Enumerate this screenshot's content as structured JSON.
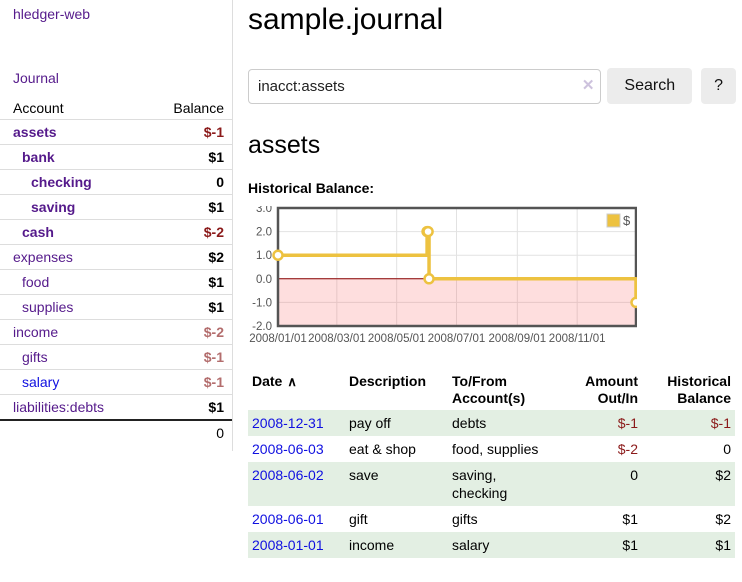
{
  "app": {
    "brand": "hledger-web"
  },
  "sidebar": {
    "nav_journal": "Journal",
    "table": {
      "headers": [
        "Account",
        "Balance"
      ],
      "rows": [
        {
          "account": "assets",
          "indent": 1,
          "bold": true,
          "balance": "$-1",
          "balance_style": "negative"
        },
        {
          "account": "bank",
          "indent": 2,
          "bold": true,
          "balance": "$1",
          "balance_style": "normal"
        },
        {
          "account": "checking",
          "indent": 3,
          "bold": true,
          "balance": "0",
          "balance_style": "normal"
        },
        {
          "account": "saving",
          "indent": 3,
          "bold": true,
          "balance": "$1",
          "balance_style": "normal"
        },
        {
          "account": "cash",
          "indent": 2,
          "bold": true,
          "balance": "$-2",
          "balance_style": "negative"
        },
        {
          "account": "expenses",
          "indent": 1,
          "bold": false,
          "balance": "$2",
          "balance_style": "normal"
        },
        {
          "account": "food",
          "indent": 2,
          "bold": false,
          "balance": "$1",
          "balance_style": "normal"
        },
        {
          "account": "supplies",
          "indent": 2,
          "bold": false,
          "balance": "$1",
          "balance_style": "normal"
        },
        {
          "account": "income",
          "indent": 1,
          "bold": false,
          "balance": "$-2",
          "balance_style": "negative-muted"
        },
        {
          "account": "gifts",
          "indent": 2,
          "bold": false,
          "balance": "$-1",
          "balance_style": "negative-muted"
        },
        {
          "account": "salary",
          "indent": 2,
          "bold": false,
          "balance": "$-1",
          "balance_style": "negative-muted",
          "link_style": "unvisited"
        },
        {
          "account": "liabilities:debts",
          "indent": 1,
          "bold": false,
          "balance": "$1",
          "balance_style": "normal"
        }
      ],
      "total": "0"
    }
  },
  "header": {
    "title": "sample.journal"
  },
  "search": {
    "value": "inacct:assets",
    "button": "Search",
    "help_button": "?"
  },
  "icons": {
    "sort_asc": "∧",
    "clear": "✕",
    "legend_swatch": "dollar-series"
  },
  "account_page": {
    "title": "assets",
    "chart_label": "Historical Balance:"
  },
  "chart_data": {
    "type": "line",
    "title": "Historical Balance:",
    "x_start": "2008-01-01",
    "x_end": "2008-12-31",
    "x_ticks": [
      {
        "date": "2008-01-01",
        "label": "2008/01/01"
      },
      {
        "date": "2008-03-01",
        "label": "2008/03/01"
      },
      {
        "date": "2008-05-01",
        "label": "2008/05/01"
      },
      {
        "date": "2008-07-01",
        "label": "2008/07/01"
      },
      {
        "date": "2008-09-01",
        "label": "2008/09/01"
      },
      {
        "date": "2008-11-01",
        "label": "2008/11/01"
      }
    ],
    "y_ticks": [
      {
        "value": 3,
        "label": "3.0"
      },
      {
        "value": 2,
        "label": "2.0"
      },
      {
        "value": 1,
        "label": "1.0"
      },
      {
        "value": 0,
        "label": "0.0"
      },
      {
        "value": -1,
        "label": "-1.0"
      },
      {
        "value": -2,
        "label": "-2.0"
      }
    ],
    "ylim": [
      -2,
      3
    ],
    "grid": true,
    "legend": {
      "position": "top-right",
      "entries": [
        "$"
      ]
    },
    "series": [
      {
        "name": "$",
        "color": "#EDC240",
        "style": "step",
        "points": [
          {
            "date": "2008-01-01",
            "value": 1
          },
          {
            "date": "2008-06-01",
            "value": 2
          },
          {
            "date": "2008-06-02",
            "value": 2
          },
          {
            "date": "2008-06-03",
            "value": 0
          },
          {
            "date": "2008-12-31",
            "value": -1
          }
        ]
      }
    ],
    "negative_region": {
      "from": 0,
      "to": -2,
      "color": "#fbd9d9"
    },
    "zero_line_color": "#8b0000",
    "border_color": "#545454",
    "tick_text_color": "#545454"
  },
  "register": {
    "headers": {
      "date": "Date",
      "description": "Description",
      "accounts": "To/From Account(s)",
      "amount": "Amount Out/In",
      "balance": "Historical Balance"
    },
    "rows": [
      {
        "date": "2008-12-31",
        "description": "pay off",
        "accounts": "debts",
        "amount": "$-1",
        "amount_negative": true,
        "balance": "$-1",
        "balance_negative": true
      },
      {
        "date": "2008-06-03",
        "description": "eat & shop",
        "accounts": "food, supplies",
        "amount": "$-2",
        "amount_negative": true,
        "balance": "0",
        "balance_negative": false
      },
      {
        "date": "2008-06-02",
        "description": "save",
        "accounts": "saving, checking",
        "amount": "0",
        "amount_negative": false,
        "balance": "$2",
        "balance_negative": false
      },
      {
        "date": "2008-06-01",
        "description": "gift",
        "accounts": "gifts",
        "amount": "$1",
        "amount_negative": false,
        "balance": "$2",
        "balance_negative": false
      },
      {
        "date": "2008-01-01",
        "description": "income",
        "accounts": "salary",
        "amount": "$1",
        "amount_negative": false,
        "balance": "$1",
        "balance_negative": false
      }
    ]
  },
  "colors": {
    "link_visited": "#551a8b",
    "link_unvisited": "#1010e0",
    "negative": "#8b1a1a",
    "negative_muted": "#b36d6d",
    "row_stripe": "#e3efe3",
    "chart_line": "#EDC240"
  }
}
